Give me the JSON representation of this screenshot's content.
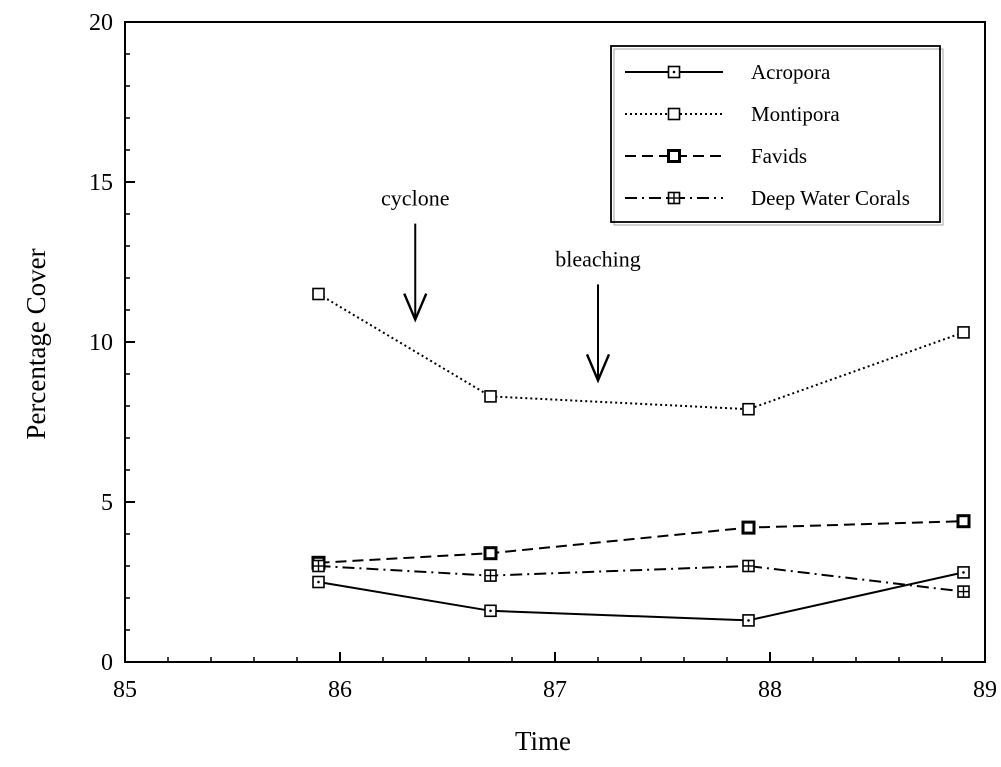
{
  "chart_data": {
    "type": "line",
    "xlabel": "Time",
    "ylabel": "Percentage Cover",
    "xlim": [
      85,
      89
    ],
    "ylim": [
      0,
      20
    ],
    "x_ticks": [
      85,
      86,
      87,
      88,
      89
    ],
    "y_ticks": [
      0,
      5,
      10,
      15,
      20
    ],
    "grid": false,
    "legend_position": "top-right",
    "x": [
      85.9,
      86.7,
      87.9,
      88.9
    ],
    "series": [
      {
        "name": "Acropora",
        "style": "solid",
        "marker": "square-dot",
        "values": [
          2.5,
          1.6,
          1.3,
          2.8
        ]
      },
      {
        "name": "Montipora",
        "style": "dotted",
        "marker": "square-open",
        "values": [
          11.5,
          8.3,
          7.9,
          10.3
        ]
      },
      {
        "name": "Favids",
        "style": "dashed",
        "marker": "square-bold",
        "values": [
          3.1,
          3.4,
          4.2,
          4.4
        ]
      },
      {
        "name": "Deep Water Corals",
        "style": "dashdot",
        "marker": "square-cross",
        "values": [
          3.0,
          2.7,
          3.0,
          2.2
        ]
      }
    ],
    "annotations": [
      {
        "text": "cyclone",
        "x": 86.35,
        "arrow_to_y": 10.7,
        "arrow_from_y": 13.7
      },
      {
        "text": "bleaching",
        "x": 87.2,
        "arrow_to_y": 8.8,
        "arrow_from_y": 11.8
      }
    ],
    "colors": {
      "line": "#000000",
      "background": "#ffffff"
    }
  }
}
